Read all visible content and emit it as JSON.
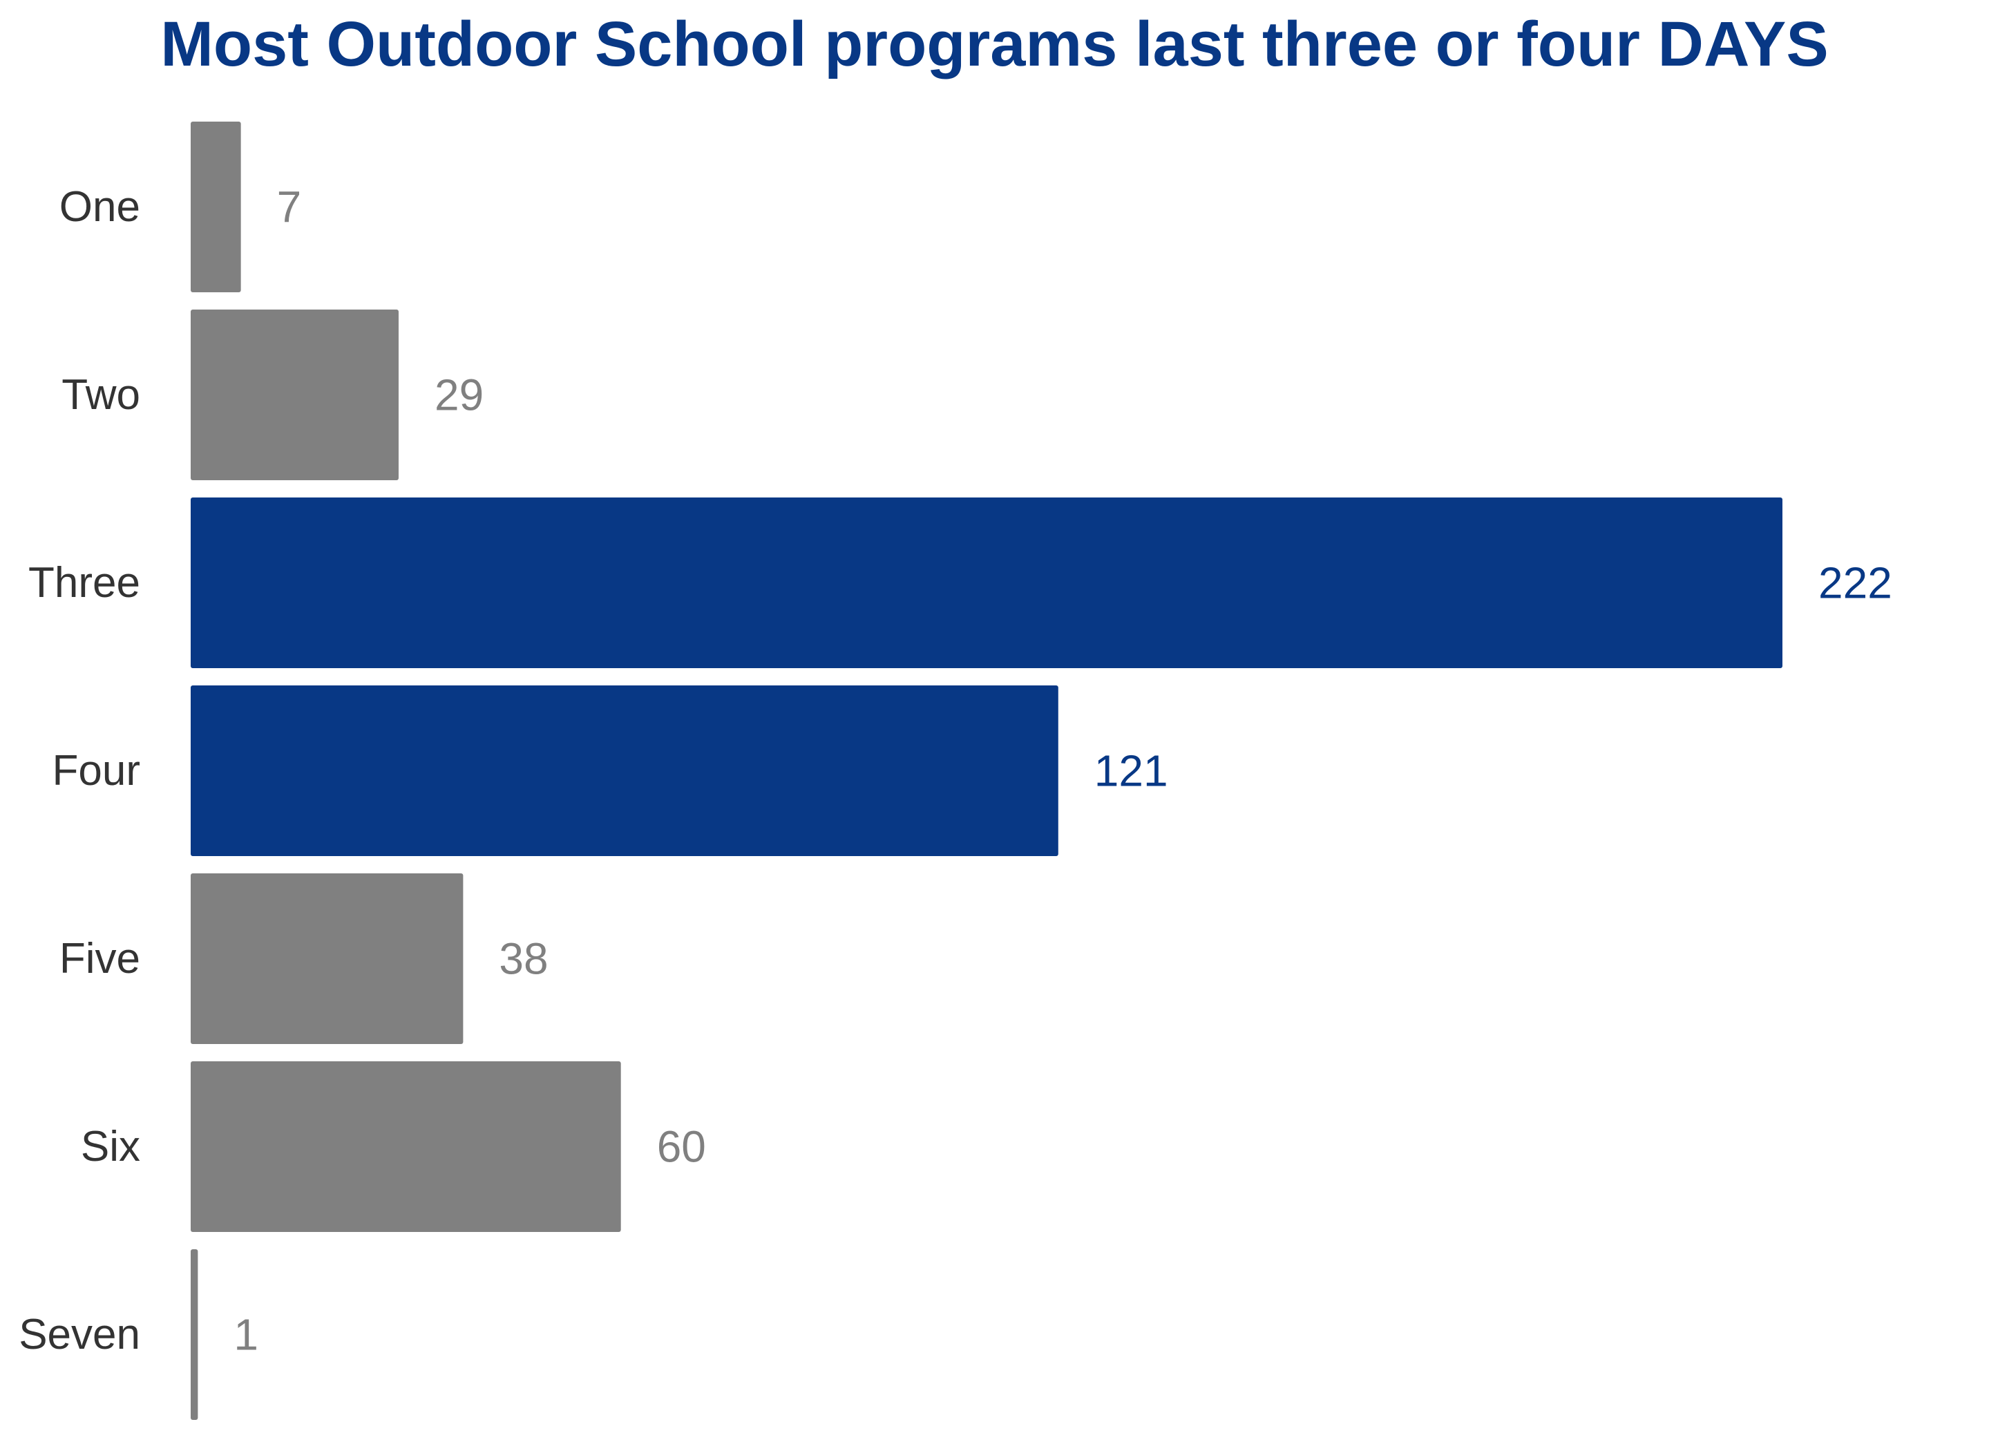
{
  "chart_data": {
    "type": "bar",
    "orientation": "horizontal",
    "title": "Most Outdoor School programs last three or four DAYS",
    "xlabel": "",
    "ylabel": "",
    "categories": [
      "One",
      "Two",
      "Three",
      "Four",
      "Five",
      "Six",
      "Seven"
    ],
    "values": [
      7,
      29,
      222,
      121,
      38,
      60,
      1
    ],
    "data_labels": [
      "7",
      "29",
      "222",
      "121",
      "38",
      "60",
      "1"
    ],
    "highlighted": [
      "Three",
      "Four"
    ],
    "xlim": [
      0,
      222
    ],
    "grid": false,
    "legend": "none",
    "colors": {
      "highlight": "#083885",
      "default": "#808080",
      "title": "#083885",
      "category_text": "#333333"
    }
  }
}
